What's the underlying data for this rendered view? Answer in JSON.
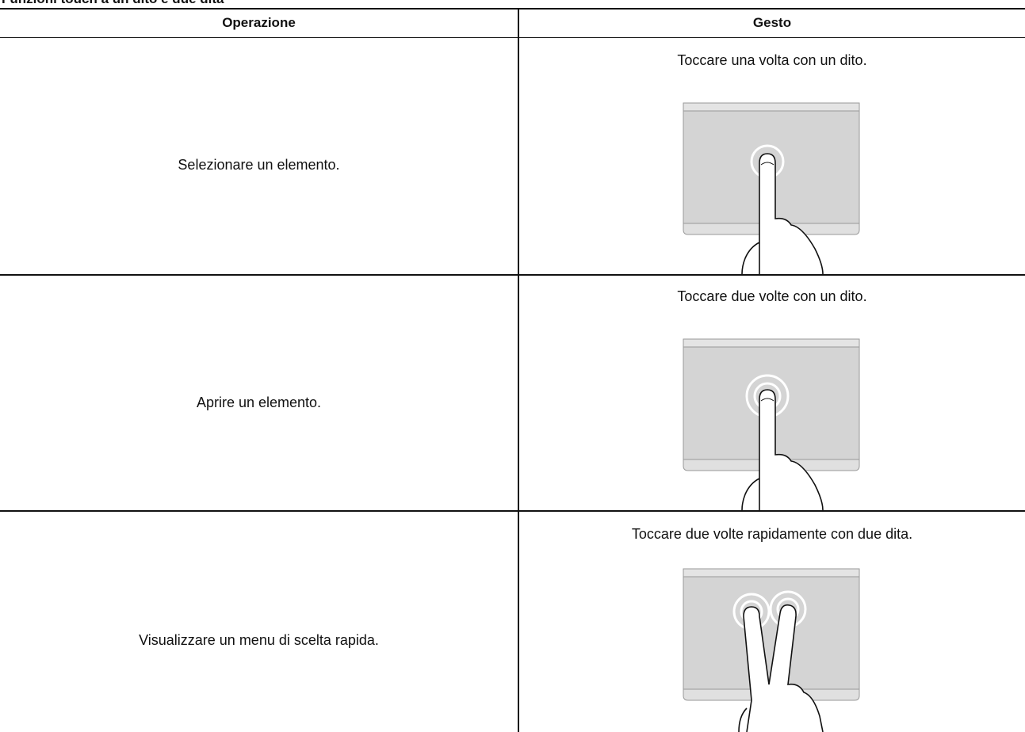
{
  "header": {
    "title": "Funzioni touch a un dito e due dita"
  },
  "table": {
    "columns": [
      "Operazione",
      "Gesto"
    ],
    "rows": [
      [
        "Selezionare un elemento.",
        "Toccare una volta con un dito."
      ],
      [
        "Aprire un elemento.",
        "Toccare due volte con un dito."
      ],
      [
        "Visualizzare un menu di scelta rapida.",
        "Toccare due volte rapidamente con due dita."
      ]
    ]
  }
}
